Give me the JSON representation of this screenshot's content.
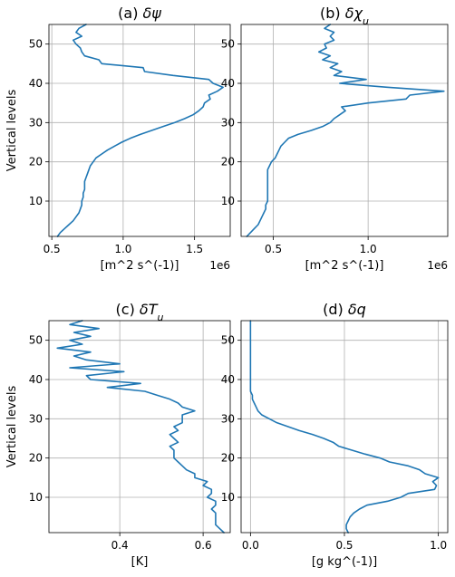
{
  "figure": {
    "line_color": "#1f77b4"
  },
  "chart_data": [
    {
      "type": "line",
      "title": "(a) δψ",
      "title_parts": [
        {
          "text": "(a) "
        },
        {
          "text": "δψ",
          "italic": true
        }
      ],
      "xlabel": "[m^2 s^(-1)]",
      "ylabel": "Vertical levels",
      "offset_text": "1e6",
      "xlim": [
        0.48,
        1.75
      ],
      "ylim": [
        1,
        55
      ],
      "xticks": [
        0.5,
        1.0,
        1.5
      ],
      "xtick_labels": [
        "0.5",
        "1.0",
        "1.5"
      ],
      "yticks": [
        10,
        20,
        30,
        40,
        50
      ],
      "ytick_labels": [
        "10",
        "20",
        "30",
        "40",
        "50"
      ],
      "grid": true,
      "series": [
        {
          "x": [
            0.54,
            0.56,
            0.59,
            0.62,
            0.65,
            0.67,
            0.69,
            0.7,
            0.71,
            0.71,
            0.72,
            0.72,
            0.73,
            0.73,
            0.73,
            0.74,
            0.75,
            0.76,
            0.77,
            0.79,
            0.81,
            0.85,
            0.89,
            0.94,
            0.99,
            1.05,
            1.12,
            1.2,
            1.28,
            1.36,
            1.43,
            1.49,
            1.53,
            1.56,
            1.57,
            1.61,
            1.6,
            1.66,
            1.7,
            1.63,
            1.6,
            1.35,
            1.15,
            1.14,
            0.85,
            0.83,
            0.73,
            0.71,
            0.7,
            0.67,
            0.65,
            0.71,
            0.67,
            0.69,
            0.74
          ],
          "y": [
            1,
            2,
            3,
            4,
            5,
            6,
            7,
            8,
            9,
            10,
            11,
            12,
            13,
            14,
            15,
            16,
            17,
            18,
            19,
            20,
            21,
            22,
            23,
            24,
            25,
            26,
            27,
            28,
            29,
            30,
            31,
            32,
            33,
            34,
            35,
            36,
            37,
            38,
            39,
            40,
            41,
            42,
            43,
            44,
            45,
            46,
            47,
            48,
            49,
            50,
            51,
            52,
            53,
            54,
            55
          ]
        }
      ]
    },
    {
      "type": "line",
      "title": "(b) δχu",
      "title_parts": [
        {
          "text": "(b) "
        },
        {
          "text": "δχ",
          "italic": true
        },
        {
          "text": "u",
          "italic": true,
          "sub": true
        }
      ],
      "xlabel": "[m^2 s^(-1)]",
      "ylabel": "",
      "offset_text": "1e6",
      "xlim": [
        0.33,
        1.42
      ],
      "ylim": [
        1,
        55
      ],
      "xticks": [
        0.5,
        1.0
      ],
      "xtick_labels": [
        "0.5",
        "1.0"
      ],
      "yticks": [
        10,
        20,
        30,
        40,
        50
      ],
      "ytick_labels": [
        "10",
        "20",
        "30",
        "40",
        "50"
      ],
      "grid": true,
      "series": [
        {
          "x": [
            0.36,
            0.38,
            0.4,
            0.42,
            0.43,
            0.44,
            0.45,
            0.46,
            0.46,
            0.47,
            0.47,
            0.47,
            0.47,
            0.47,
            0.47,
            0.47,
            0.47,
            0.47,
            0.48,
            0.49,
            0.51,
            0.52,
            0.53,
            0.54,
            0.56,
            0.58,
            0.63,
            0.7,
            0.76,
            0.8,
            0.82,
            0.85,
            0.88,
            0.86,
            1.0,
            1.2,
            1.22,
            1.4,
            1.1,
            0.85,
            0.99,
            0.82,
            0.86,
            0.8,
            0.84,
            0.76,
            0.8,
            0.74,
            0.78,
            0.77,
            0.82,
            0.8,
            0.82,
            0.77,
            0.8
          ],
          "y": [
            1,
            2,
            3,
            4,
            5,
            6,
            7,
            8,
            9,
            10,
            11,
            12,
            13,
            14,
            15,
            16,
            17,
            18,
            19,
            20,
            21,
            22,
            23,
            24,
            25,
            26,
            27,
            28,
            29,
            30,
            31,
            32,
            33,
            34,
            35,
            36,
            37,
            38,
            39,
            40,
            41,
            42,
            43,
            44,
            45,
            46,
            47,
            48,
            49,
            50,
            51,
            52,
            53,
            54,
            55
          ]
        }
      ]
    },
    {
      "type": "line",
      "title": "(c) δTu",
      "title_parts": [
        {
          "text": "(c) "
        },
        {
          "text": "δT",
          "italic": true
        },
        {
          "text": "u",
          "italic": true,
          "sub": true
        }
      ],
      "xlabel": "[K]",
      "ylabel": "Vertical levels",
      "offset_text": "",
      "xlim": [
        0.23,
        0.665
      ],
      "ylim": [
        1,
        55
      ],
      "xticks": [
        0.4,
        0.6
      ],
      "xtick_labels": [
        "0.4",
        "0.6"
      ],
      "yticks": [
        10,
        20,
        30,
        40,
        50
      ],
      "ytick_labels": [
        "10",
        "20",
        "30",
        "40",
        "50"
      ],
      "grid": true,
      "series": [
        {
          "x": [
            0.65,
            0.64,
            0.63,
            0.63,
            0.63,
            0.63,
            0.62,
            0.63,
            0.63,
            0.61,
            0.62,
            0.62,
            0.6,
            0.61,
            0.58,
            0.58,
            0.56,
            0.55,
            0.54,
            0.53,
            0.53,
            0.53,
            0.52,
            0.54,
            0.53,
            0.52,
            0.54,
            0.53,
            0.55,
            0.55,
            0.55,
            0.58,
            0.55,
            0.54,
            0.52,
            0.49,
            0.46,
            0.37,
            0.45,
            0.33,
            0.32,
            0.41,
            0.28,
            0.4,
            0.32,
            0.29,
            0.33,
            0.25,
            0.31,
            0.28,
            0.33,
            0.29,
            0.35,
            0.28,
            0.31
          ],
          "y": [
            1,
            2,
            3,
            4,
            5,
            6,
            7,
            8,
            9,
            10,
            11,
            12,
            13,
            14,
            15,
            16,
            17,
            18,
            19,
            20,
            21,
            22,
            23,
            24,
            25,
            26,
            27,
            28,
            29,
            30,
            31,
            32,
            33,
            34,
            35,
            36,
            37,
            38,
            39,
            40,
            41,
            42,
            43,
            44,
            45,
            46,
            47,
            48,
            49,
            50,
            51,
            52,
            53,
            54,
            55
          ]
        }
      ]
    },
    {
      "type": "line",
      "title": "(d) δq",
      "title_parts": [
        {
          "text": "(d) "
        },
        {
          "text": "δq",
          "italic": true
        }
      ],
      "xlabel": "[g kg^(-1)]",
      "ylabel": "",
      "offset_text": "",
      "xlim": [
        -0.05,
        1.05
      ],
      "ylim": [
        1,
        55
      ],
      "xticks": [
        0.0,
        0.5,
        1.0
      ],
      "xtick_labels": [
        "0.0",
        "0.5",
        "1.0"
      ],
      "yticks": [
        10,
        20,
        30,
        40,
        50
      ],
      "ytick_labels": [
        "10",
        "20",
        "30",
        "40",
        "50"
      ],
      "grid": true,
      "series": [
        {
          "x": [
            0.52,
            0.51,
            0.51,
            0.52,
            0.53,
            0.55,
            0.58,
            0.62,
            0.73,
            0.8,
            0.84,
            0.98,
            0.99,
            0.97,
            1.0,
            0.93,
            0.9,
            0.84,
            0.74,
            0.69,
            0.61,
            0.54,
            0.47,
            0.44,
            0.39,
            0.33,
            0.26,
            0.2,
            0.14,
            0.1,
            0.06,
            0.04,
            0.03,
            0.02,
            0.01,
            0.01,
            0.0,
            0.0,
            0.0,
            0.0,
            0.0,
            0.0,
            0.0,
            0.0,
            0.0,
            0.0,
            0.0,
            0.0,
            0.0,
            0.0,
            0.0,
            0.0,
            0.0,
            0.0,
            0.0
          ],
          "y": [
            1,
            2,
            3,
            4,
            5,
            6,
            7,
            8,
            9,
            10,
            11,
            12,
            13,
            14,
            15,
            16,
            17,
            18,
            19,
            20,
            21,
            22,
            23,
            24,
            25,
            26,
            27,
            28,
            29,
            30,
            31,
            32,
            33,
            34,
            35,
            36,
            37,
            38,
            39,
            40,
            41,
            42,
            43,
            44,
            45,
            46,
            47,
            48,
            49,
            50,
            51,
            52,
            53,
            54,
            55
          ]
        }
      ]
    }
  ]
}
